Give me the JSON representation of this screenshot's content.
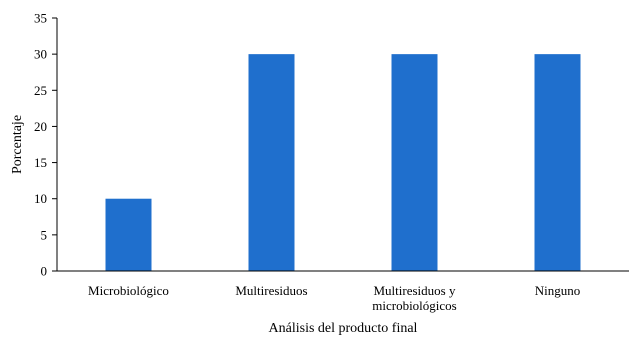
{
  "chart_data": {
    "type": "bar",
    "categories": [
      [
        "Microbiológico"
      ],
      [
        "Multiresiduos"
      ],
      [
        "Multiresiduos y",
        "microbiológicos"
      ],
      [
        "Ninguno"
      ]
    ],
    "values": [
      10,
      30,
      30,
      30
    ],
    "title": "",
    "xlabel": "Análisis del producto final",
    "ylabel": "Porcentaje",
    "ylim": [
      0,
      35
    ],
    "yticks": [
      0,
      5,
      10,
      15,
      20,
      25,
      30,
      35
    ],
    "grid": false,
    "bar_color": "#1f6fcd"
  }
}
